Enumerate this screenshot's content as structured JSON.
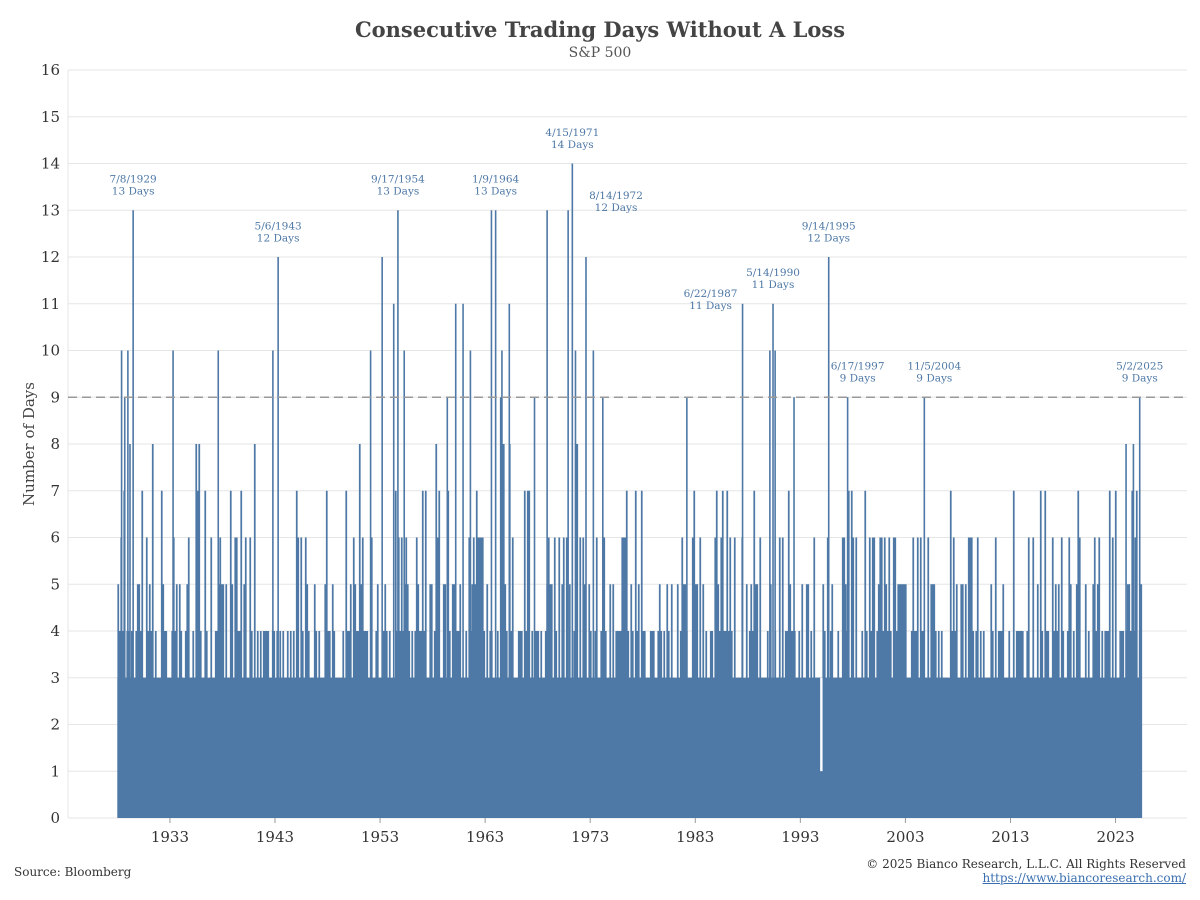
{
  "colors": {
    "bar": "#4e78a6",
    "grid": "#e6e6e6",
    "threshold": "#999999",
    "annotation": "#4e78a6"
  },
  "footer": {
    "source": "Source: Bloomberg",
    "copyright": "© 2025 Bianco Research, L.L.C. All Rights Reserved",
    "url": "https://www.biancoresearch.com/"
  },
  "chart_data": {
    "type": "bar",
    "title": "Consecutive Trading Days Without A Loss",
    "subtitle": "S&P 500",
    "ylabel": "Number of Days",
    "xlabel": "",
    "ylim": [
      0,
      16
    ],
    "xlim": [
      1923.3,
      2029.8
    ],
    "yticks": [
      0,
      1,
      2,
      3,
      4,
      5,
      6,
      7,
      8,
      9,
      10,
      11,
      12,
      13,
      14,
      15,
      16
    ],
    "xticks": [
      1933,
      1943,
      1953,
      1963,
      1973,
      1983,
      1993,
      2003,
      2013,
      2023
    ],
    "series_range": [
      1928.0,
      2025.4
    ],
    "threshold": 9,
    "grid": true,
    "notable_streaks": [
      {
        "x": 1929.5,
        "value": 13,
        "date": "7/8/1929",
        "label": "13 Days"
      },
      {
        "x": 1943.3,
        "value": 12,
        "date": "5/6/1943",
        "label": "12 Days"
      },
      {
        "x": 1954.7,
        "value": 13,
        "date": "9/17/1954",
        "label": "13 Days"
      },
      {
        "x": 1964.0,
        "value": 13,
        "date": "1/9/1964",
        "label": "13 Days"
      },
      {
        "x": 1971.3,
        "value": 14,
        "date": "4/15/1971",
        "label": "14 Days"
      },
      {
        "x": 1972.6,
        "value": 12,
        "date": "8/14/1972",
        "label": "12 Days"
      },
      {
        "x": 1987.5,
        "value": 11,
        "date": "6/22/1987",
        "label": "11 Days"
      },
      {
        "x": 1990.4,
        "value": 11,
        "date": "5/14/1990",
        "label": "11 Days"
      },
      {
        "x": 1995.7,
        "value": 12,
        "date": "9/14/1995",
        "label": "12 Days"
      },
      {
        "x": 1997.5,
        "value": 9,
        "date": "6/17/1997",
        "label": "9 Days"
      },
      {
        "x": 2004.8,
        "value": 9,
        "date": "11/5/2004",
        "label": "9 Days"
      },
      {
        "x": 2025.3,
        "value": 9,
        "date": "5/2/2025",
        "label": "9 Days"
      }
    ],
    "other_peaks": [
      {
        "x": 1928.4,
        "value": 10
      },
      {
        "x": 1928.7,
        "value": 9
      },
      {
        "x": 1929.0,
        "value": 10
      },
      {
        "x": 1929.2,
        "value": 8
      },
      {
        "x": 1933.3,
        "value": 10
      },
      {
        "x": 1937.6,
        "value": 10
      },
      {
        "x": 1942.8,
        "value": 10
      },
      {
        "x": 1952.1,
        "value": 10
      },
      {
        "x": 1953.2,
        "value": 12
      },
      {
        "x": 1954.3,
        "value": 11
      },
      {
        "x": 1955.3,
        "value": 10
      },
      {
        "x": 1959.4,
        "value": 9
      },
      {
        "x": 1960.2,
        "value": 11
      },
      {
        "x": 1960.9,
        "value": 11
      },
      {
        "x": 1961.6,
        "value": 10
      },
      {
        "x": 1963.6,
        "value": 13
      },
      {
        "x": 1964.6,
        "value": 10
      },
      {
        "x": 1965.3,
        "value": 11
      },
      {
        "x": 1967.7,
        "value": 9
      },
      {
        "x": 1968.9,
        "value": 13
      },
      {
        "x": 1970.9,
        "value": 13
      },
      {
        "x": 1971.6,
        "value": 10
      },
      {
        "x": 1973.3,
        "value": 10
      },
      {
        "x": 1974.2,
        "value": 9
      },
      {
        "x": 1982.2,
        "value": 9
      },
      {
        "x": 1990.1,
        "value": 10
      },
      {
        "x": 1990.6,
        "value": 10
      },
      {
        "x": 1992.4,
        "value": 9
      },
      {
        "x": 2024.0,
        "value": 8
      },
      {
        "x": 2024.7,
        "value": 8
      }
    ],
    "notable_dips": [
      {
        "x": 1995.0,
        "value": 1
      }
    ]
  }
}
